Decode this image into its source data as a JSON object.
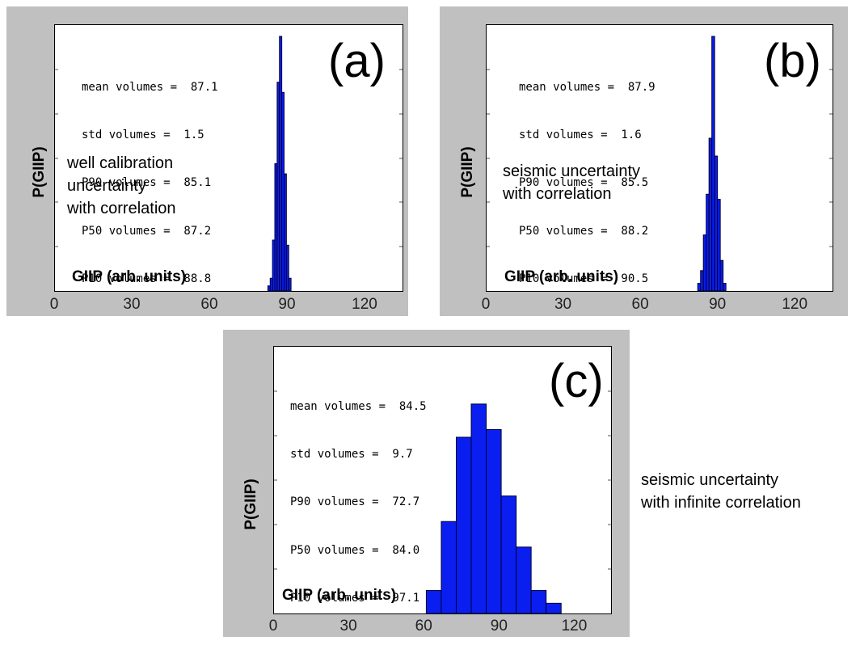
{
  "chart_data": [
    {
      "id": "a",
      "type": "bar",
      "panel_label": "(a)",
      "xlabel": "GIIP (arb. units)",
      "ylabel": "P(GIIP)",
      "xlim": [
        0,
        135
      ],
      "xticks": [
        0,
        30,
        60,
        90,
        120
      ],
      "ylim": [
        0,
        100
      ],
      "stats": [
        "mean volumes =  87.1",
        "std volumes =  1.5",
        "P90 volumes =  85.1",
        "P50 volumes =  87.2",
        "P10 volumes =  88.8"
      ],
      "annotation": [
        "well calibration",
        "uncertainty",
        "with correlation"
      ],
      "bin_edges": [
        82.7,
        83.6,
        84.5,
        85.4,
        86.3,
        87.2,
        88.1,
        89.0,
        89.9,
        90.8,
        91.7
      ],
      "values": [
        2,
        5,
        20,
        50,
        82,
        100,
        78,
        46,
        18,
        5
      ]
    },
    {
      "id": "b",
      "type": "bar",
      "panel_label": "(b)",
      "xlabel": "GIIP (arb. units)",
      "ylabel": "P(GIIP)",
      "xlim": [
        0,
        135
      ],
      "xticks": [
        0,
        30,
        60,
        90,
        120
      ],
      "ylim": [
        0,
        100
      ],
      "stats": [
        "mean volumes =  87.9",
        "std volumes =  1.6",
        "P90 volumes =  85.5",
        "P50 volumes =  88.2",
        "P10 volumes =  90.5"
      ],
      "annotation": [
        "seismic uncertainty",
        "with correlation"
      ],
      "bin_edges": [
        82.4,
        83.5,
        84.6,
        85.7,
        86.8,
        87.9,
        89.0,
        90.1,
        91.2,
        92.3,
        93.4
      ],
      "values": [
        3,
        8,
        22,
        38,
        60,
        100,
        53,
        36,
        12,
        3
      ]
    },
    {
      "id": "c",
      "type": "bar",
      "panel_label": "(c)",
      "xlabel": "GIIP (arb. units)",
      "ylabel": "P(GIIP)",
      "xlim": [
        0,
        135
      ],
      "xticks": [
        0,
        30,
        60,
        90,
        120
      ],
      "ylim": [
        0,
        100
      ],
      "stats": [
        "mean volumes =  84.5",
        "std volumes =  9.7",
        "P90 volumes =  72.7",
        "P50 volumes =  84.0",
        "P10 volumes =  97.1"
      ],
      "bin_edges": [
        61,
        67,
        73,
        79,
        85,
        91,
        97,
        103,
        109,
        115
      ],
      "values": [
        9,
        36,
        69,
        82,
        72,
        46,
        26,
        9,
        4
      ]
    }
  ],
  "panel_c_caption": [
    "seismic uncertainty",
    "with infinite correlation"
  ],
  "colors": {
    "bar_fill": "#0a1ef0",
    "bar_stroke": "#000033",
    "panel_bg": "#c0c0c0"
  }
}
